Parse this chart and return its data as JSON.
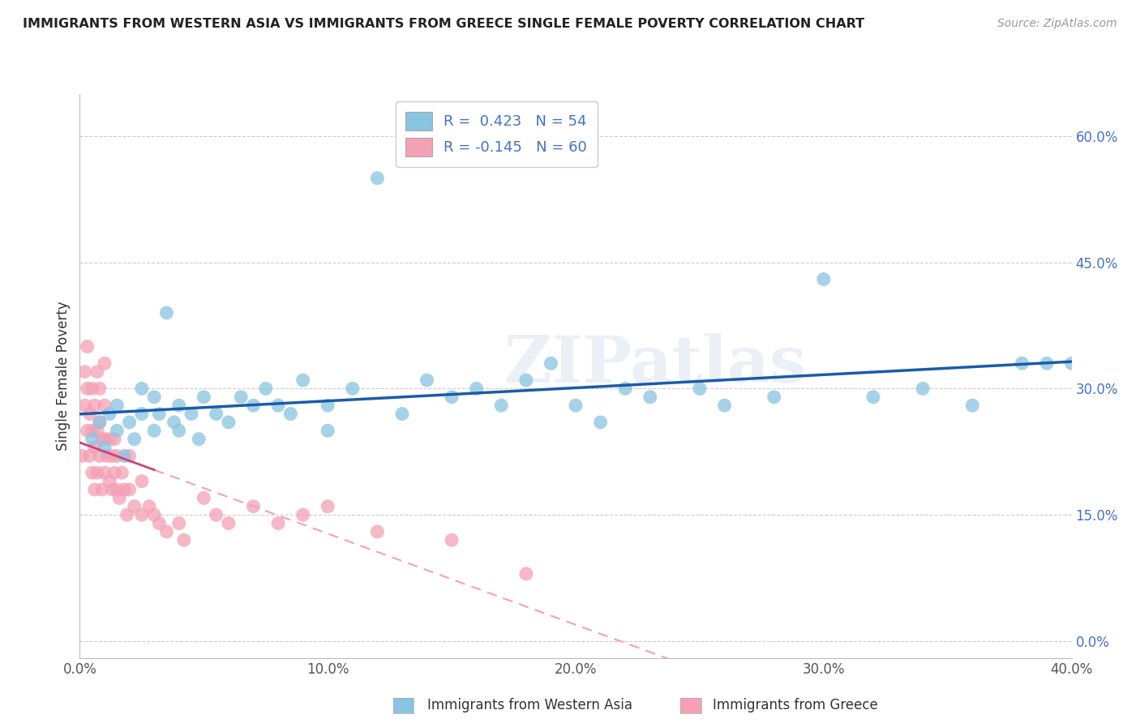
{
  "title": "IMMIGRANTS FROM WESTERN ASIA VS IMMIGRANTS FROM GREECE SINGLE FEMALE POVERTY CORRELATION CHART",
  "source": "Source: ZipAtlas.com",
  "ylabel": "Single Female Poverty",
  "legend_label1": "Immigrants from Western Asia",
  "legend_label2": "Immigrants from Greece",
  "R1": 0.423,
  "N1": 54,
  "R2": -0.145,
  "N2": 60,
  "blue_color": "#89c4e1",
  "pink_color": "#f4a0b5",
  "blue_line_color": "#1a5ca8",
  "pink_line_solid_color": "#d44070",
  "pink_line_dash_color": "#f0a0c0",
  "watermark": "ZIPatlas",
  "xlim": [
    0.0,
    0.4
  ],
  "ylim": [
    -0.02,
    0.65
  ],
  "blue_scatter_x": [
    0.005,
    0.008,
    0.01,
    0.012,
    0.015,
    0.015,
    0.018,
    0.02,
    0.022,
    0.025,
    0.025,
    0.03,
    0.03,
    0.032,
    0.035,
    0.038,
    0.04,
    0.04,
    0.045,
    0.048,
    0.05,
    0.055,
    0.06,
    0.065,
    0.07,
    0.075,
    0.08,
    0.085,
    0.09,
    0.1,
    0.1,
    0.11,
    0.12,
    0.13,
    0.14,
    0.15,
    0.16,
    0.17,
    0.18,
    0.19,
    0.2,
    0.21,
    0.22,
    0.23,
    0.25,
    0.26,
    0.28,
    0.3,
    0.32,
    0.34,
    0.36,
    0.38,
    0.39,
    0.4
  ],
  "blue_scatter_y": [
    0.24,
    0.26,
    0.23,
    0.27,
    0.25,
    0.28,
    0.22,
    0.26,
    0.24,
    0.27,
    0.3,
    0.25,
    0.29,
    0.27,
    0.39,
    0.26,
    0.28,
    0.25,
    0.27,
    0.24,
    0.29,
    0.27,
    0.26,
    0.29,
    0.28,
    0.3,
    0.28,
    0.27,
    0.31,
    0.25,
    0.28,
    0.3,
    0.55,
    0.27,
    0.31,
    0.29,
    0.3,
    0.28,
    0.31,
    0.33,
    0.28,
    0.26,
    0.3,
    0.29,
    0.3,
    0.28,
    0.29,
    0.43,
    0.29,
    0.3,
    0.28,
    0.33,
    0.33,
    0.33
  ],
  "pink_scatter_x": [
    0.001,
    0.002,
    0.002,
    0.003,
    0.003,
    0.003,
    0.004,
    0.004,
    0.005,
    0.005,
    0.005,
    0.006,
    0.006,
    0.006,
    0.007,
    0.007,
    0.007,
    0.008,
    0.008,
    0.008,
    0.009,
    0.009,
    0.01,
    0.01,
    0.01,
    0.01,
    0.011,
    0.012,
    0.012,
    0.013,
    0.013,
    0.014,
    0.014,
    0.015,
    0.015,
    0.016,
    0.017,
    0.018,
    0.019,
    0.02,
    0.02,
    0.022,
    0.025,
    0.025,
    0.028,
    0.03,
    0.032,
    0.035,
    0.04,
    0.042,
    0.05,
    0.055,
    0.06,
    0.07,
    0.08,
    0.09,
    0.1,
    0.12,
    0.15,
    0.18
  ],
  "pink_scatter_y": [
    0.22,
    0.28,
    0.32,
    0.25,
    0.3,
    0.35,
    0.22,
    0.27,
    0.2,
    0.25,
    0.3,
    0.18,
    0.23,
    0.28,
    0.2,
    0.25,
    0.32,
    0.22,
    0.26,
    0.3,
    0.18,
    0.24,
    0.2,
    0.24,
    0.28,
    0.33,
    0.22,
    0.19,
    0.24,
    0.18,
    0.22,
    0.2,
    0.24,
    0.18,
    0.22,
    0.17,
    0.2,
    0.18,
    0.15,
    0.18,
    0.22,
    0.16,
    0.15,
    0.19,
    0.16,
    0.15,
    0.14,
    0.13,
    0.14,
    0.12,
    0.17,
    0.15,
    0.14,
    0.16,
    0.14,
    0.15,
    0.16,
    0.13,
    0.12,
    0.08
  ],
  "x_ticks": [
    0.0,
    0.1,
    0.2,
    0.3,
    0.4
  ],
  "y_ticks": [
    0.0,
    0.15,
    0.3,
    0.45,
    0.6
  ]
}
